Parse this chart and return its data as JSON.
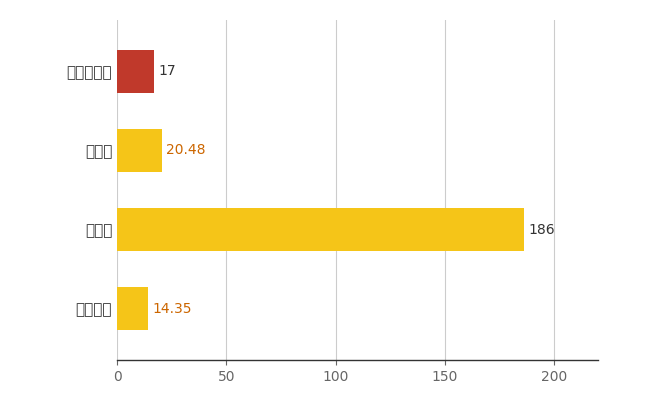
{
  "categories": [
    "南あわじ市",
    "県平均",
    "県最大",
    "全国平均"
  ],
  "values": [
    17,
    20.48,
    186,
    14.35
  ],
  "bar_colors": [
    "#c0392b",
    "#f5c518",
    "#f5c518",
    "#f5c518"
  ],
  "value_labels": [
    "17",
    "20.48",
    "186",
    "14.35"
  ],
  "value_label_color_0": "#333333",
  "value_label_color_1": "#cc6600",
  "value_label_color_2": "#333333",
  "value_label_color_3": "#cc6600",
  "xlim": [
    0,
    220
  ],
  "bar_height": 0.55,
  "grid_color": "#cccccc",
  "background_color": "#ffffff",
  "label_fontsize": 11,
  "value_fontsize": 10,
  "tick_fontsize": 10,
  "figwidth": 6.5,
  "figheight": 4.0,
  "dpi": 100
}
